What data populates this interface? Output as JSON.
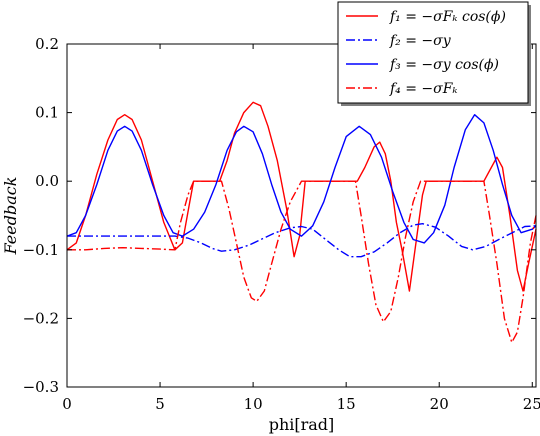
{
  "chart_data": {
    "type": "line",
    "xlabel": "phi[rad]",
    "ylabel": "Feedback",
    "xlim": [
      0,
      25.2
    ],
    "ylim": [
      -0.3,
      0.2
    ],
    "xticks": [
      0,
      5,
      10,
      15,
      20,
      25
    ],
    "yticks": [
      0.2,
      0.1,
      0.0,
      -0.1,
      -0.2,
      -0.3
    ],
    "xtick_labels": [
      "0",
      "5",
      "10",
      "15",
      "20",
      "25"
    ],
    "ytick_labels": [
      "0.2",
      "0.1",
      "0.0",
      "−0.1",
      "−0.2",
      "−0.3"
    ],
    "legend_position": "top-right",
    "grid": false,
    "series": [
      {
        "name": "f₁ = −σFₖ cos(ϕ)",
        "color": "#ff0000",
        "dash": "solid",
        "points": [
          [
            0,
            -0.1
          ],
          [
            0.5,
            -0.09
          ],
          [
            1.0,
            -0.05
          ],
          [
            1.6,
            0.01
          ],
          [
            2.2,
            0.06
          ],
          [
            2.7,
            0.09
          ],
          [
            3.1,
            0.097
          ],
          [
            3.5,
            0.09
          ],
          [
            4.0,
            0.06
          ],
          [
            4.6,
            0.0
          ],
          [
            5.2,
            -0.06
          ],
          [
            5.8,
            -0.1
          ],
          [
            6.2,
            -0.09
          ],
          [
            6.6,
            -0.03
          ],
          [
            6.8,
            0.0
          ],
          [
            7.6,
            0.0
          ],
          [
            8.2,
            0.0
          ],
          [
            8.6,
            0.03
          ],
          [
            9.0,
            0.07
          ],
          [
            9.5,
            0.1
          ],
          [
            10.0,
            0.115
          ],
          [
            10.4,
            0.11
          ],
          [
            10.8,
            0.08
          ],
          [
            11.3,
            0.03
          ],
          [
            11.8,
            -0.04
          ],
          [
            12.2,
            -0.11
          ],
          [
            12.5,
            -0.08
          ],
          [
            12.8,
            0.0
          ],
          [
            13.5,
            0.0
          ],
          [
            14.5,
            0.0
          ],
          [
            15.6,
            0.0
          ],
          [
            16.0,
            0.02
          ],
          [
            16.5,
            0.05
          ],
          [
            16.8,
            0.057
          ],
          [
            17.1,
            0.04
          ],
          [
            17.4,
            0.0
          ],
          [
            17.7,
            -0.06
          ],
          [
            18.0,
            -0.1
          ],
          [
            18.4,
            -0.16
          ],
          [
            18.7,
            -0.1
          ],
          [
            19.1,
            -0.02
          ],
          [
            19.3,
            0.0
          ],
          [
            20.0,
            0.0
          ],
          [
            21.0,
            0.0
          ],
          [
            22.4,
            0.0
          ],
          [
            22.8,
            0.02
          ],
          [
            23.1,
            0.035
          ],
          [
            23.4,
            0.02
          ],
          [
            23.8,
            -0.05
          ],
          [
            24.2,
            -0.13
          ],
          [
            24.5,
            -0.16
          ],
          [
            24.8,
            -0.12
          ],
          [
            25.2,
            -0.07
          ]
        ]
      },
      {
        "name": "f₂ = −σy",
        "color": "#0000ff",
        "dash": "dashdot",
        "points": [
          [
            0,
            -0.08
          ],
          [
            1,
            -0.08
          ],
          [
            2,
            -0.08
          ],
          [
            3,
            -0.08
          ],
          [
            4,
            -0.08
          ],
          [
            5,
            -0.08
          ],
          [
            5.8,
            -0.08
          ],
          [
            6.5,
            -0.083
          ],
          [
            7.2,
            -0.09
          ],
          [
            7.8,
            -0.098
          ],
          [
            8.3,
            -0.102
          ],
          [
            9,
            -0.1
          ],
          [
            9.8,
            -0.093
          ],
          [
            10.5,
            -0.084
          ],
          [
            11.2,
            -0.075
          ],
          [
            12,
            -0.068
          ],
          [
            12.6,
            -0.066
          ],
          [
            13.2,
            -0.07
          ],
          [
            13.9,
            -0.085
          ],
          [
            14.6,
            -0.1
          ],
          [
            15.2,
            -0.11
          ],
          [
            15.8,
            -0.11
          ],
          [
            16.5,
            -0.103
          ],
          [
            17.2,
            -0.09
          ],
          [
            17.9,
            -0.075
          ],
          [
            18.6,
            -0.064
          ],
          [
            19.1,
            -0.062
          ],
          [
            19.8,
            -0.067
          ],
          [
            20.5,
            -0.08
          ],
          [
            21.2,
            -0.095
          ],
          [
            21.8,
            -0.1
          ],
          [
            22.5,
            -0.095
          ],
          [
            23.2,
            -0.085
          ],
          [
            24,
            -0.074
          ],
          [
            24.6,
            -0.066
          ],
          [
            25.2,
            -0.065
          ]
        ]
      },
      {
        "name": "f₃ = −σy cos(ϕ)",
        "color": "#0000ff",
        "dash": "solid",
        "points": [
          [
            0,
            -0.08
          ],
          [
            0.5,
            -0.075
          ],
          [
            1.0,
            -0.05
          ],
          [
            1.6,
            -0.005
          ],
          [
            2.2,
            0.045
          ],
          [
            2.7,
            0.073
          ],
          [
            3.1,
            0.08
          ],
          [
            3.5,
            0.073
          ],
          [
            4.0,
            0.045
          ],
          [
            4.6,
            -0.005
          ],
          [
            5.2,
            -0.05
          ],
          [
            5.7,
            -0.075
          ],
          [
            6.2,
            -0.08
          ],
          [
            6.8,
            -0.07
          ],
          [
            7.4,
            -0.045
          ],
          [
            8.0,
            -0.005
          ],
          [
            8.6,
            0.045
          ],
          [
            9.1,
            0.072
          ],
          [
            9.5,
            0.08
          ],
          [
            10.0,
            0.072
          ],
          [
            10.5,
            0.04
          ],
          [
            11.0,
            -0.005
          ],
          [
            11.5,
            -0.045
          ],
          [
            12.0,
            -0.07
          ],
          [
            12.6,
            -0.08
          ],
          [
            13.2,
            -0.065
          ],
          [
            13.8,
            -0.03
          ],
          [
            14.4,
            0.02
          ],
          [
            15.0,
            0.065
          ],
          [
            15.7,
            0.08
          ],
          [
            16.3,
            0.068
          ],
          [
            16.9,
            0.035
          ],
          [
            17.5,
            -0.015
          ],
          [
            18.1,
            -0.06
          ],
          [
            18.6,
            -0.085
          ],
          [
            19.2,
            -0.09
          ],
          [
            19.7,
            -0.075
          ],
          [
            20.3,
            -0.035
          ],
          [
            20.8,
            0.02
          ],
          [
            21.4,
            0.075
          ],
          [
            21.9,
            0.097
          ],
          [
            22.4,
            0.085
          ],
          [
            22.9,
            0.045
          ],
          [
            23.4,
            -0.005
          ],
          [
            23.9,
            -0.05
          ],
          [
            24.4,
            -0.075
          ],
          [
            25.0,
            -0.07
          ],
          [
            25.2,
            -0.065
          ]
        ]
      },
      {
        "name": "f₄ = −σFₖ",
        "color": "#ff0000",
        "dash": "dashdot",
        "points": [
          [
            0,
            -0.1
          ],
          [
            1,
            -0.1
          ],
          [
            2,
            -0.098
          ],
          [
            3,
            -0.097
          ],
          [
            4,
            -0.098
          ],
          [
            5,
            -0.099
          ],
          [
            5.8,
            -0.1
          ],
          [
            6.1,
            -0.06
          ],
          [
            6.5,
            -0.02
          ],
          [
            6.8,
            0.0
          ],
          [
            7.5,
            0.0
          ],
          [
            8.3,
            0.0
          ],
          [
            8.7,
            -0.04
          ],
          [
            9.1,
            -0.09
          ],
          [
            9.5,
            -0.14
          ],
          [
            9.9,
            -0.17
          ],
          [
            10.2,
            -0.175
          ],
          [
            10.6,
            -0.16
          ],
          [
            11.0,
            -0.12
          ],
          [
            11.5,
            -0.07
          ],
          [
            12.0,
            -0.03
          ],
          [
            12.6,
            0.0
          ],
          [
            13.5,
            0.0
          ],
          [
            14.5,
            0.0
          ],
          [
            15.5,
            0.0
          ],
          [
            15.8,
            -0.05
          ],
          [
            16.2,
            -0.12
          ],
          [
            16.6,
            -0.18
          ],
          [
            17.0,
            -0.205
          ],
          [
            17.4,
            -0.19
          ],
          [
            17.8,
            -0.14
          ],
          [
            18.2,
            -0.08
          ],
          [
            18.6,
            -0.03
          ],
          [
            19.0,
            0.0
          ],
          [
            20.0,
            0.0
          ],
          [
            21.0,
            0.0
          ],
          [
            22.4,
            0.0
          ],
          [
            22.7,
            -0.05
          ],
          [
            23.1,
            -0.12
          ],
          [
            23.5,
            -0.2
          ],
          [
            23.9,
            -0.235
          ],
          [
            24.2,
            -0.22
          ],
          [
            24.5,
            -0.17
          ],
          [
            24.9,
            -0.09
          ],
          [
            25.2,
            -0.05
          ]
        ]
      }
    ]
  }
}
